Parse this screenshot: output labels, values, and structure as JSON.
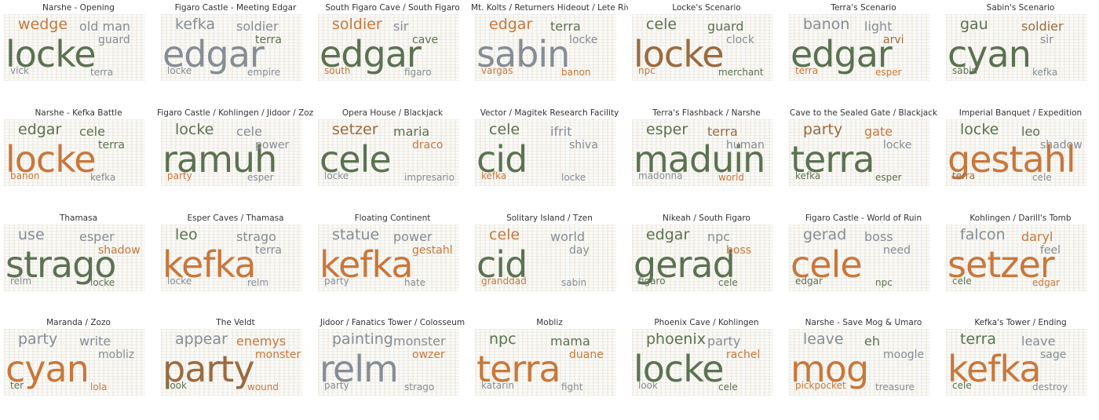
{
  "panels": [
    {
      "title": "Narshe - Opening",
      "words": [
        {
          "text": "locke",
          "color": "green"
        },
        {
          "text": "wedge",
          "color": "orange"
        },
        {
          "text": "old man",
          "color": "gray"
        },
        {
          "text": "guard",
          "color": "gray"
        },
        {
          "text": "vick",
          "color": "gray"
        },
        {
          "text": "terra",
          "color": "gray"
        }
      ]
    },
    {
      "title": "Figaro Castle - Meeting Edgar",
      "words": [
        {
          "text": "edgar",
          "color": "gray"
        },
        {
          "text": "kefka",
          "color": "gray"
        },
        {
          "text": "soldier",
          "color": "gray"
        },
        {
          "text": "terra",
          "color": "green"
        },
        {
          "text": "locke",
          "color": "gray"
        },
        {
          "text": "empire",
          "color": "gray"
        }
      ]
    },
    {
      "title": "South Figaro Cave / South Figaro",
      "words": [
        {
          "text": "edgar",
          "color": "green"
        },
        {
          "text": "soldier",
          "color": "orange"
        },
        {
          "text": "sir",
          "color": "gray"
        },
        {
          "text": "cave",
          "color": "green"
        },
        {
          "text": "south",
          "color": "orange"
        },
        {
          "text": "figaro",
          "color": "gray"
        }
      ]
    },
    {
      "title": "Mt. Kolts / Returners Hideout / Lete River",
      "words": [
        {
          "text": "sabin",
          "color": "gray"
        },
        {
          "text": "edgar",
          "color": "orange"
        },
        {
          "text": "terra",
          "color": "green"
        },
        {
          "text": "locke",
          "color": "gray"
        },
        {
          "text": "vargas",
          "color": "orange"
        },
        {
          "text": "banon",
          "color": "orange"
        }
      ]
    },
    {
      "title": "Locke's Scenario",
      "words": [
        {
          "text": "locke",
          "color": "brown"
        },
        {
          "text": "cele",
          "color": "green"
        },
        {
          "text": "guard",
          "color": "green"
        },
        {
          "text": "clock",
          "color": "gray"
        },
        {
          "text": "npc",
          "color": "orange"
        },
        {
          "text": "merchant",
          "color": "green"
        }
      ]
    },
    {
      "title": "Terra's Scenario",
      "words": [
        {
          "text": "edgar",
          "color": "green"
        },
        {
          "text": "banon",
          "color": "gray"
        },
        {
          "text": "light",
          "color": "gray"
        },
        {
          "text": "arvi",
          "color": "brown"
        },
        {
          "text": "terra",
          "color": "orange"
        },
        {
          "text": "esper",
          "color": "orange"
        }
      ]
    },
    {
      "title": "Sabin's Scenario",
      "words": [
        {
          "text": "cyan",
          "color": "green"
        },
        {
          "text": "gau",
          "color": "green"
        },
        {
          "text": "soldier",
          "color": "brown"
        },
        {
          "text": "sir",
          "color": "gray"
        },
        {
          "text": "sabin",
          "color": "green"
        },
        {
          "text": "kefka",
          "color": "gray"
        }
      ]
    },
    {
      "title": "Narshe - Kefka Battle",
      "words": [
        {
          "text": "locke",
          "color": "orange"
        },
        {
          "text": "edgar",
          "color": "green"
        },
        {
          "text": "cele",
          "color": "green"
        },
        {
          "text": "terra",
          "color": "green"
        },
        {
          "text": "banon",
          "color": "orange"
        },
        {
          "text": "kefka",
          "color": "gray"
        }
      ]
    },
    {
      "title": "Figaro Castle / Kohlingen / Jidoor / Zozo",
      "words": [
        {
          "text": "ramuh",
          "color": "green"
        },
        {
          "text": "locke",
          "color": "green"
        },
        {
          "text": "cele",
          "color": "gray"
        },
        {
          "text": "power",
          "color": "gray"
        },
        {
          "text": "party",
          "color": "orange"
        },
        {
          "text": "esper",
          "color": "gray"
        }
      ]
    },
    {
      "title": "Opera House / Blackjack",
      "words": [
        {
          "text": "cele",
          "color": "green"
        },
        {
          "text": "setzer",
          "color": "brown"
        },
        {
          "text": "maria",
          "color": "green"
        },
        {
          "text": "draco",
          "color": "orange"
        },
        {
          "text": "locke",
          "color": "gray"
        },
        {
          "text": "impresario",
          "color": "gray"
        }
      ]
    },
    {
      "title": "Vector / Magitek Research Facility",
      "words": [
        {
          "text": "cid",
          "color": "green"
        },
        {
          "text": "cele",
          "color": "green"
        },
        {
          "text": "ifrit",
          "color": "gray"
        },
        {
          "text": "shiva",
          "color": "gray"
        },
        {
          "text": "kefka",
          "color": "orange"
        },
        {
          "text": "locke",
          "color": "gray"
        }
      ]
    },
    {
      "title": "Terra's Flashback / Narshe",
      "words": [
        {
          "text": "maduin",
          "color": "green"
        },
        {
          "text": "esper",
          "color": "green"
        },
        {
          "text": "terra",
          "color": "brown"
        },
        {
          "text": "human",
          "color": "gray"
        },
        {
          "text": "madonna",
          "color": "gray"
        },
        {
          "text": "world",
          "color": "orange"
        }
      ]
    },
    {
      "title": "Cave to the Sealed Gate / Blackjack",
      "words": [
        {
          "text": "terra",
          "color": "green"
        },
        {
          "text": "party",
          "color": "brown"
        },
        {
          "text": "gate",
          "color": "orange"
        },
        {
          "text": "locke",
          "color": "gray"
        },
        {
          "text": "kefka",
          "color": "green"
        },
        {
          "text": "esper",
          "color": "green"
        }
      ]
    },
    {
      "title": "Imperial Banquet / Expedition",
      "words": [
        {
          "text": "gestahl",
          "color": "orange"
        },
        {
          "text": "locke",
          "color": "green"
        },
        {
          "text": "leo",
          "color": "green"
        },
        {
          "text": "shadow",
          "color": "gray"
        },
        {
          "text": "terra",
          "color": "brown"
        },
        {
          "text": "cele",
          "color": "gray"
        }
      ]
    },
    {
      "title": "Thamasa",
      "words": [
        {
          "text": "strago",
          "color": "green"
        },
        {
          "text": "use",
          "color": "gray"
        },
        {
          "text": "esper",
          "color": "gray"
        },
        {
          "text": "shadow",
          "color": "orange"
        },
        {
          "text": "relm",
          "color": "gray"
        },
        {
          "text": "locke",
          "color": "green"
        }
      ]
    },
    {
      "title": "Esper Caves / Thamasa",
      "words": [
        {
          "text": "kefka",
          "color": "orange"
        },
        {
          "text": "leo",
          "color": "green"
        },
        {
          "text": "strago",
          "color": "gray"
        },
        {
          "text": "terra",
          "color": "gray"
        },
        {
          "text": "locke",
          "color": "gray"
        },
        {
          "text": "relm",
          "color": "gray"
        }
      ]
    },
    {
      "title": "Floating Continent",
      "words": [
        {
          "text": "kefka",
          "color": "orange"
        },
        {
          "text": "statue",
          "color": "gray"
        },
        {
          "text": "power",
          "color": "gray"
        },
        {
          "text": "gestahl",
          "color": "orange"
        },
        {
          "text": "party",
          "color": "gray"
        },
        {
          "text": "hate",
          "color": "gray"
        }
      ]
    },
    {
      "title": "Solitary Island / Tzen",
      "words": [
        {
          "text": "cid",
          "color": "green"
        },
        {
          "text": "cele",
          "color": "orange"
        },
        {
          "text": "world",
          "color": "gray"
        },
        {
          "text": "day",
          "color": "gray"
        },
        {
          "text": "granddad",
          "color": "orange"
        },
        {
          "text": "sabin",
          "color": "gray"
        }
      ]
    },
    {
      "title": "Nikeah / South Figaro",
      "words": [
        {
          "text": "gerad",
          "color": "green"
        },
        {
          "text": "edgar",
          "color": "green"
        },
        {
          "text": "npc",
          "color": "gray"
        },
        {
          "text": "boss",
          "color": "orange"
        },
        {
          "text": "figaro",
          "color": "green"
        },
        {
          "text": "cele",
          "color": "green"
        }
      ]
    },
    {
      "title": "Figaro Castle - World of Ruin",
      "words": [
        {
          "text": "cele",
          "color": "orange"
        },
        {
          "text": "gerad",
          "color": "gray"
        },
        {
          "text": "boss",
          "color": "gray"
        },
        {
          "text": "need",
          "color": "gray"
        },
        {
          "text": "edgar",
          "color": "green"
        },
        {
          "text": "npc",
          "color": "green"
        }
      ]
    },
    {
      "title": "Kohlingen / Darill's Tomb",
      "words": [
        {
          "text": "setzer",
          "color": "orange"
        },
        {
          "text": "falcon",
          "color": "gray"
        },
        {
          "text": "daryl",
          "color": "orange"
        },
        {
          "text": "feel",
          "color": "gray"
        },
        {
          "text": "cele",
          "color": "green"
        },
        {
          "text": "edgar",
          "color": "orange"
        }
      ]
    },
    {
      "title": "Maranda / Zozo",
      "words": [
        {
          "text": "cyan",
          "color": "orange"
        },
        {
          "text": "party",
          "color": "gray"
        },
        {
          "text": "write",
          "color": "gray"
        },
        {
          "text": "mobliz",
          "color": "gray"
        },
        {
          "text": "ter",
          "color": "green"
        },
        {
          "text": "lola",
          "color": "orange"
        }
      ]
    },
    {
      "title": "The Veldt",
      "words": [
        {
          "text": "party",
          "color": "brown"
        },
        {
          "text": "appear",
          "color": "gray"
        },
        {
          "text": "enemys",
          "color": "orange"
        },
        {
          "text": "monster",
          "color": "orange"
        },
        {
          "text": "look",
          "color": "green"
        },
        {
          "text": "wound",
          "color": "orange"
        }
      ]
    },
    {
      "title": "Jidoor / Fanatics Tower / Colosseum",
      "words": [
        {
          "text": "relm",
          "color": "gray"
        },
        {
          "text": "painting",
          "color": "gray"
        },
        {
          "text": "monster",
          "color": "gray"
        },
        {
          "text": "owzer",
          "color": "orange"
        },
        {
          "text": "party",
          "color": "gray"
        },
        {
          "text": "strago",
          "color": "gray"
        }
      ]
    },
    {
      "title": "Mobliz",
      "words": [
        {
          "text": "terra",
          "color": "orange"
        },
        {
          "text": "npc",
          "color": "green"
        },
        {
          "text": "mama",
          "color": "green"
        },
        {
          "text": "duane",
          "color": "orange"
        },
        {
          "text": "katarin",
          "color": "gray"
        },
        {
          "text": "fight",
          "color": "gray"
        }
      ]
    },
    {
      "title": "Phoenix Cave / Kohlingen",
      "words": [
        {
          "text": "locke",
          "color": "green"
        },
        {
          "text": "phoenix",
          "color": "green"
        },
        {
          "text": "party",
          "color": "gray"
        },
        {
          "text": "rachel",
          "color": "orange"
        },
        {
          "text": "look",
          "color": "gray"
        },
        {
          "text": "cele",
          "color": "green"
        }
      ]
    },
    {
      "title": "Narshe - Save Mog & Umaro",
      "words": [
        {
          "text": "mog",
          "color": "orange"
        },
        {
          "text": "leave",
          "color": "gray"
        },
        {
          "text": "eh",
          "color": "green"
        },
        {
          "text": "moogle",
          "color": "gray"
        },
        {
          "text": "pickpocket",
          "color": "orange"
        },
        {
          "text": "treasure",
          "color": "gray"
        }
      ]
    },
    {
      "title": "Kefka's Tower / Ending",
      "words": [
        {
          "text": "kefka",
          "color": "orange"
        },
        {
          "text": "terra",
          "color": "green"
        },
        {
          "text": "leave",
          "color": "gray"
        },
        {
          "text": "sage",
          "color": "gray"
        },
        {
          "text": "cele",
          "color": "green"
        },
        {
          "text": "destroy",
          "color": "gray"
        }
      ]
    }
  ]
}
